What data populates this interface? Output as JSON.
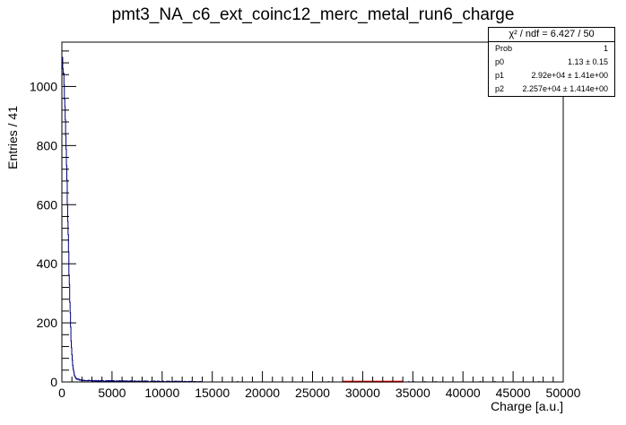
{
  "chart_data": {
    "type": "histogram",
    "title": "pmt3_NA_c6_ext_coinc12_merc_metal_run6_charge",
    "xlabel": "Charge [a.u.]",
    "ylabel": "Entries / 41",
    "xlim": [
      0,
      50000
    ],
    "ylim": [
      0,
      1150
    ],
    "x_ticks": [
      "0",
      "5000",
      "10000",
      "15000",
      "20000",
      "25000",
      "30000",
      "35000",
      "40000",
      "45000",
      "50000"
    ],
    "y_ticks": [
      "0",
      "200",
      "400",
      "600",
      "800",
      "1000"
    ],
    "grid": false,
    "colors": {
      "histogram": "#000080",
      "fit": "#ff0000"
    },
    "histogram_profile": {
      "x": [
        0,
        100,
        200,
        300,
        400,
        500,
        600,
        700,
        800,
        900,
        1000,
        1100,
        1200,
        1300,
        1500,
        1800,
        2200,
        3000,
        5000,
        8000,
        12000,
        14000
      ],
      "y": [
        1100,
        1070,
        1030,
        930,
        820,
        690,
        540,
        400,
        270,
        160,
        90,
        50,
        30,
        18,
        10,
        7,
        5,
        4,
        3,
        2,
        1,
        0
      ]
    },
    "fit_range": [
      28000,
      34000
    ],
    "fit_value": 1,
    "stats_box": {
      "header": "χ² / ndf = 6.427 / 50",
      "rows": [
        {
          "key": "Prob",
          "value": "1"
        },
        {
          "key": "p0",
          "value": "1.13 ± 0.15"
        },
        {
          "key": "p1",
          "value": "2.92e+04 ± 1.41e+00"
        },
        {
          "key": "p2",
          "value": "2.257e+04 ± 1.414e+00"
        }
      ]
    }
  }
}
